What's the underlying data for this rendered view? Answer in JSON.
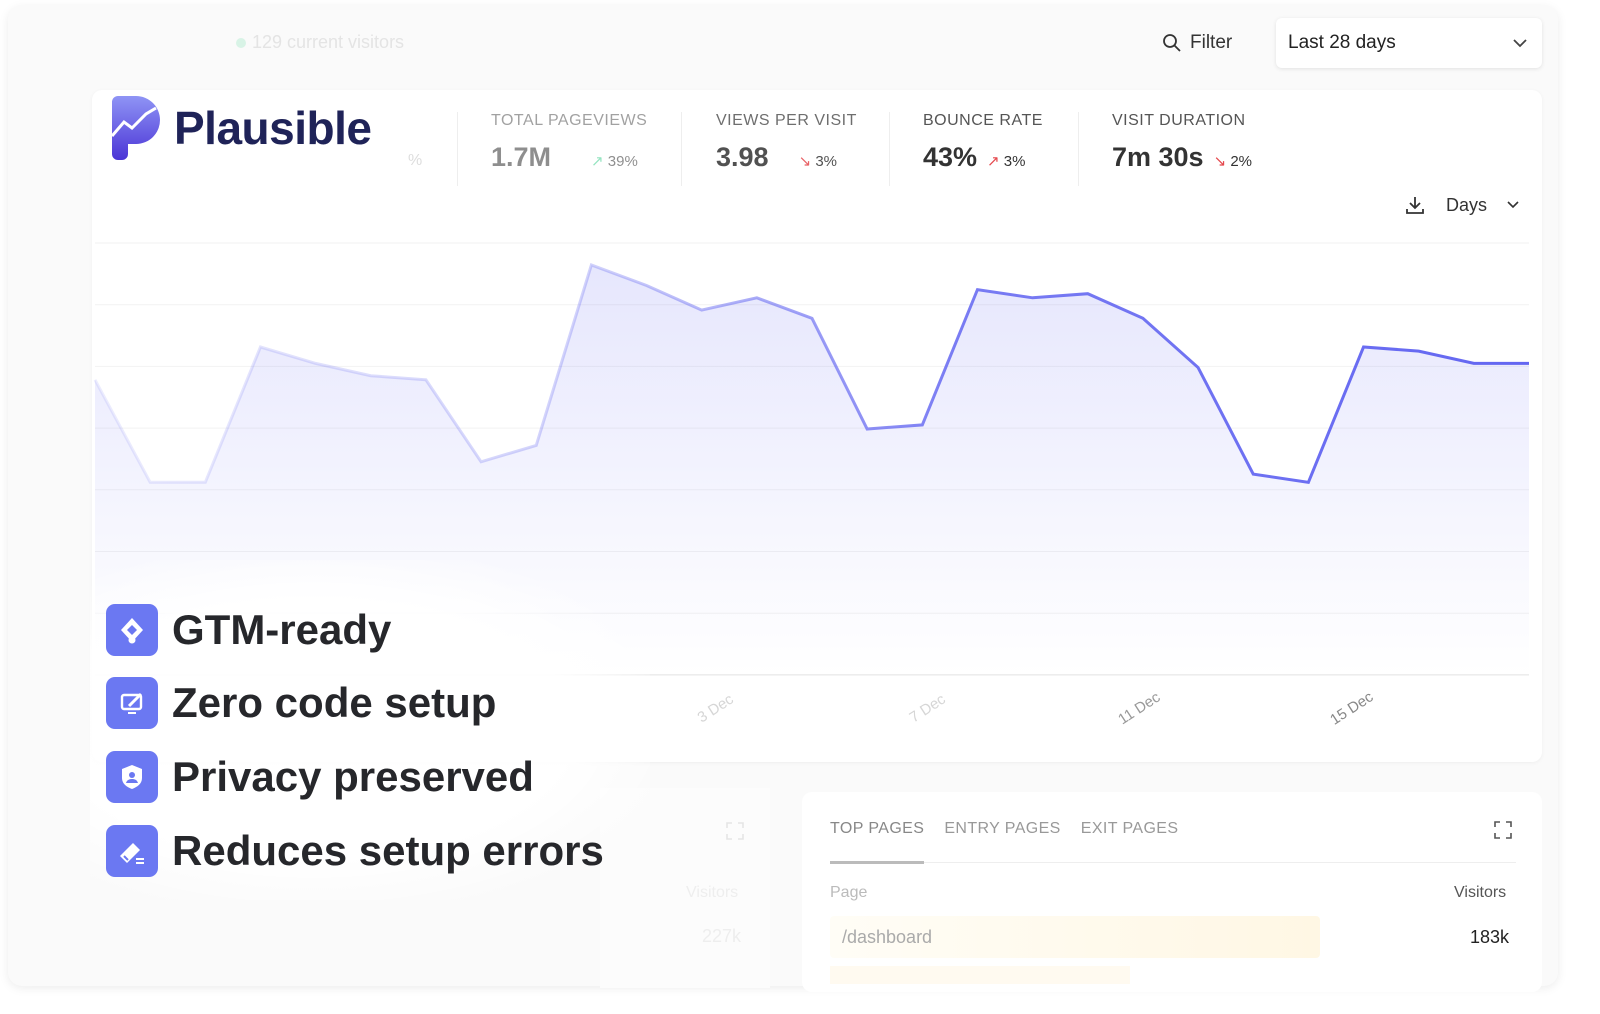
{
  "header": {
    "current_visitors": "129 current visitors",
    "filter_label": "Filter",
    "date_range": "Last 28 days"
  },
  "brand": {
    "name": "Plausible"
  },
  "stats": [
    {
      "label": "TOTAL PAGEVIEWS",
      "value": "1.7M",
      "change": "39%",
      "direction": "up"
    },
    {
      "label": "VIEWS PER VISIT",
      "value": "3.98",
      "change": "3%",
      "direction": "down"
    },
    {
      "label": "BOUNCE RATE",
      "value": "43%",
      "change": "3%",
      "direction": "up"
    },
    {
      "label": "VISIT DURATION",
      "value": "7m 30s",
      "change": "2%",
      "direction": "down"
    }
  ],
  "partial_stat_suffix": "%",
  "graph": {
    "interval": "Days",
    "x_labels": [
      "3 Dec",
      "7 Dec",
      "11 Dec",
      "15 Dec"
    ],
    "relative_values": [
      72,
      47,
      47,
      80,
      76,
      73,
      72,
      52,
      56,
      100,
      95,
      89,
      92,
      87,
      60,
      61,
      94,
      92,
      93,
      87,
      75,
      49,
      47,
      80,
      79,
      76,
      76
    ],
    "color": "#6366f1"
  },
  "features": [
    {
      "label": "GTM-ready",
      "icon": "gtm-icon"
    },
    {
      "label": "Zero code setup",
      "icon": "monitor-pen-icon"
    },
    {
      "label": "Privacy preserved",
      "icon": "shield-user-icon"
    },
    {
      "label": "Reduces setup errors",
      "icon": "eraser-icon"
    }
  ],
  "left_panel": {
    "col": "Visitors",
    "value": "227k"
  },
  "pages_panel": {
    "tabs": [
      "TOP PAGES",
      "ENTRY PAGES",
      "EXIT PAGES"
    ],
    "col_page": "Page",
    "col_visitors": "Visitors",
    "rows": [
      {
        "page": "/dashboard",
        "visitors": "183k"
      }
    ]
  },
  "colors": {
    "accent": "#6b78f2",
    "brand_dark": "#1f2358",
    "up": "#3ecf8e",
    "down": "#e5484d"
  }
}
